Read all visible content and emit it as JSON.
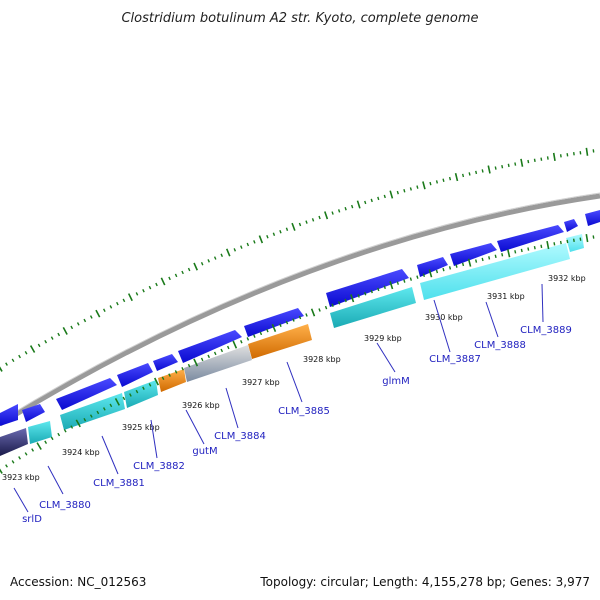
{
  "header": {
    "title": "Clostridium botulinum A2 str. Kyoto, complete genome"
  },
  "footer": {
    "accession": "Accession: NC_012563",
    "topology": "Topology: circular; Length: 4,155,278 bp; Genes: 3,977"
  },
  "map": {
    "kbp_labels": [
      "3923 kbp",
      "3924 kbp",
      "3925 kbp",
      "3926 kbp",
      "3927 kbp",
      "3928 kbp",
      "3929 kbp",
      "3930 kbp",
      "3931 kbp",
      "3932 kbp"
    ],
    "gene_labels": [
      "srlD",
      "CLM_3880",
      "CLM_3881",
      "CLM_3882",
      "gutM",
      "CLM_3884",
      "CLM_3885",
      "glmM",
      "CLM_3887",
      "CLM_3888",
      "CLM_3889"
    ]
  },
  "colors": {
    "forward_strand": "#1a1ae6",
    "cog_cyan": "#2fd0d8",
    "cog_light_cyan": "#7ff4ff",
    "cog_orange": "#f08a10",
    "cog_gray": "#b8b8b8",
    "cog_navy": "#2a2a6a",
    "tick_green": "#1a7a1a",
    "backbone": "#8c8c8c",
    "label_blue": "#1f1fbf"
  }
}
